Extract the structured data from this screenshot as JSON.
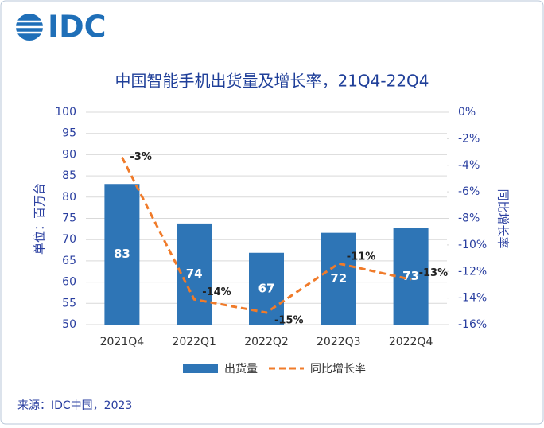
{
  "logo": "IDC",
  "chart_data": {
    "type": "bar-line",
    "title": "中国智能手机出货量及增长率，21Q4-22Q4",
    "y_label": "单位：百万台",
    "y2_label": "同比增长率",
    "categories": [
      "2021Q4",
      "2022Q1",
      "2022Q2",
      "2022Q3",
      "2022Q4"
    ],
    "series": [
      {
        "name": "出货量",
        "type": "bar",
        "color": "#2e75b6",
        "values": [
          83.1,
          73.8,
          66.9,
          71.6,
          72.7
        ],
        "value_labels": [
          "83",
          "74",
          "67",
          "72",
          "73"
        ]
      },
      {
        "name": "同比增长率",
        "type": "line",
        "axis": "y2",
        "color": "#f07b2a",
        "dashed": true,
        "values": [
          -3.4,
          -14.1,
          -15.1,
          -11.4,
          -12.6
        ],
        "value_labels": [
          "-3%",
          "-14%",
          "-15%",
          "-11%",
          "-13%"
        ]
      }
    ],
    "ylim": [
      50,
      100
    ],
    "yticks": [
      50,
      55,
      60,
      65,
      70,
      75,
      80,
      85,
      90,
      95,
      100
    ],
    "y2lim": [
      -16,
      0
    ],
    "y2ticks": [
      {
        "value": -16,
        "label": "-16%"
      },
      {
        "value": -14,
        "label": "-14%"
      },
      {
        "value": -12,
        "label": "-12%"
      },
      {
        "value": -10,
        "label": "-10%"
      },
      {
        "value": -8,
        "label": "-8%"
      },
      {
        "value": -6,
        "label": "-6%"
      },
      {
        "value": -4,
        "label": "-4%"
      },
      {
        "value": -2,
        "label": "-2%"
      },
      {
        "value": 0,
        "label": "0%"
      }
    ],
    "grid": true,
    "legend": "bottom"
  },
  "source": "来源：IDC中国，2023"
}
